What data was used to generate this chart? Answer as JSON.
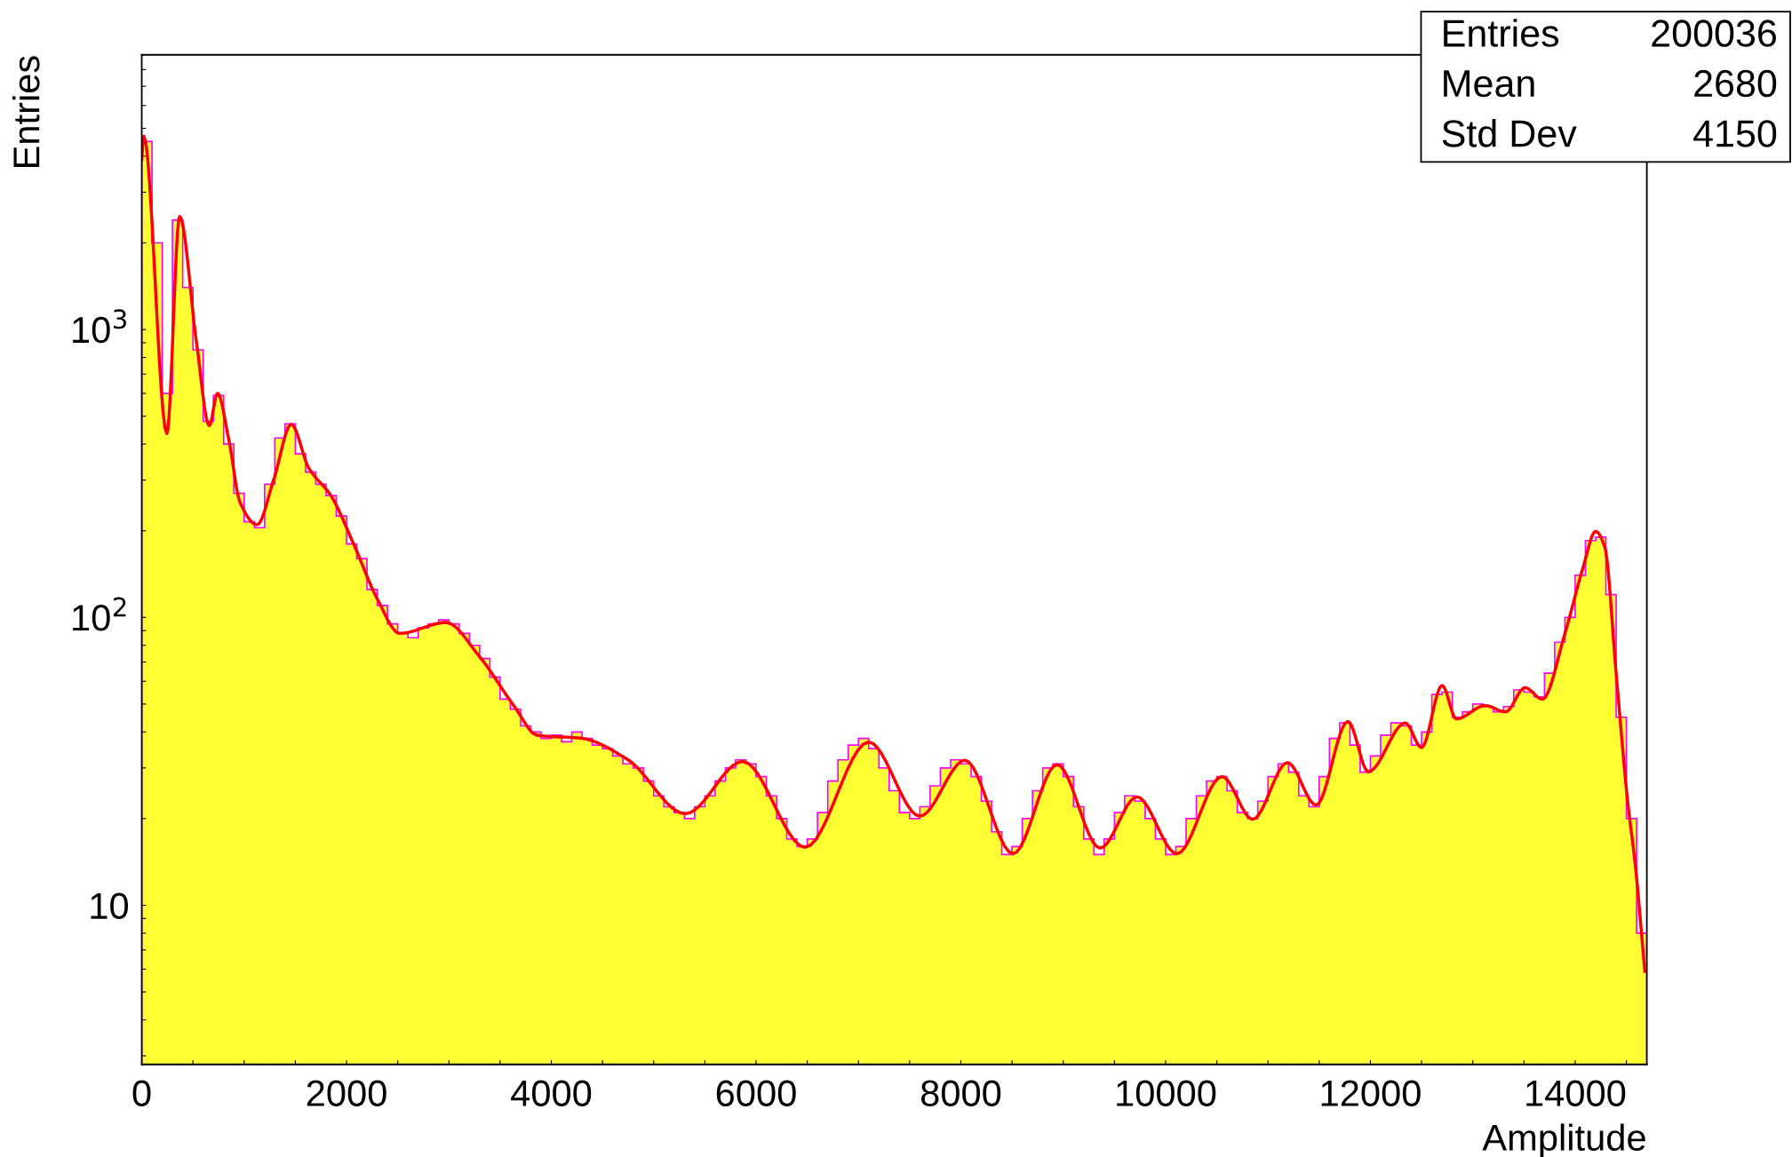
{
  "chart_data": {
    "type": "histogram",
    "xlabel": "Amplitude",
    "ylabel": "Entries",
    "annotations": [
      "Entries",
      "200036",
      "Mean",
      "2680",
      "Std Dev",
      "4150"
    ],
    "log": "y",
    "xlim": [
      0,
      14700
    ],
    "ylim": [
      2.8,
      9000
    ],
    "xticks": [
      0,
      {
        "value": 500,
        "label": null
      },
      {
        "value": 1000,
        "label": null
      },
      {
        "value": 1500,
        "label": null
      },
      2000,
      {
        "value": 2500,
        "label": null
      },
      {
        "value": 3000,
        "label": null
      },
      {
        "value": 3500,
        "label": null
      },
      4000,
      {
        "value": 4500,
        "label": null
      },
      {
        "value": 5000,
        "label": null
      },
      {
        "value": 5500,
        "label": null
      },
      6000,
      {
        "value": 6500,
        "label": null
      },
      {
        "value": 7000,
        "label": null
      },
      {
        "value": 7500,
        "label": null
      },
      8000,
      {
        "value": 8500,
        "label": null
      },
      {
        "value": 9000,
        "label": null
      },
      {
        "value": 9500,
        "label": null
      },
      10000,
      {
        "value": 10500,
        "label": null
      },
      {
        "value": 11000,
        "label": null
      },
      {
        "value": 11500,
        "label": null
      },
      12000,
      {
        "value": 12500,
        "label": null
      },
      {
        "value": 13000,
        "label": null
      },
      {
        "value": 13500,
        "label": null
      },
      14000,
      {
        "value": 14500,
        "label": null
      }
    ],
    "yticks": [
      {
        "value": 3,
        "label": null
      },
      {
        "value": 4,
        "label": null
      },
      {
        "value": 5,
        "label": null
      },
      {
        "value": 6,
        "label": null
      },
      {
        "value": 7,
        "label": null
      },
      {
        "value": 8,
        "label": null
      },
      {
        "value": 9,
        "label": null
      },
      10,
      {
        "value": 20,
        "label": null
      },
      {
        "value": 30,
        "label": null
      },
      {
        "value": 40,
        "label": null
      },
      {
        "value": 50,
        "label": null
      },
      {
        "value": 60,
        "label": null
      },
      {
        "value": 70,
        "label": null
      },
      {
        "value": 80,
        "label": null
      },
      {
        "value": 90,
        "label": null
      },
      {
        "value": 100,
        "label": "10$^{2}$"
      },
      {
        "value": 200,
        "label": null
      },
      {
        "value": 300,
        "label": null
      },
      {
        "value": 400,
        "label": null
      },
      {
        "value": 500,
        "label": null
      },
      {
        "value": 600,
        "label": null
      },
      {
        "value": 700,
        "label": null
      },
      {
        "value": 800,
        "label": null
      },
      {
        "value": 900,
        "label": null
      },
      {
        "value": 1000,
        "label": "10$^{3}$"
      },
      {
        "value": 2000,
        "label": null
      },
      {
        "value": 3000,
        "label": null
      },
      {
        "value": 4000,
        "label": null
      },
      {
        "value": 5000,
        "label": null
      },
      {
        "value": 6000,
        "label": null
      },
      {
        "value": 7000,
        "label": null
      },
      {
        "value": 8000,
        "label": null
      },
      {
        "value": 9000,
        "label": null
      }
    ],
    "grid": false,
    "bins": [
      0,
      100,
      200,
      300,
      400,
      500,
      600,
      700,
      800,
      900,
      1000,
      1100,
      1200,
      1300,
      1400,
      1500,
      1600,
      1700,
      1800,
      1900,
      2000,
      2100,
      2200,
      2300,
      2400,
      2500,
      2600,
      2700,
      2800,
      2900,
      3000,
      3100,
      3200,
      3300,
      3400,
      3500,
      3600,
      3700,
      3800,
      3900,
      4000,
      4100,
      4200,
      4300,
      4400,
      4500,
      4600,
      4700,
      4800,
      4900,
      5000,
      5100,
      5200,
      5300,
      5400,
      5500,
      5600,
      5700,
      5800,
      5900,
      6000,
      6100,
      6200,
      6300,
      6400,
      6500,
      6600,
      6700,
      6800,
      6900,
      7000,
      7100,
      7200,
      7300,
      7400,
      7500,
      7600,
      7700,
      7800,
      7900,
      8000,
      8100,
      8200,
      8300,
      8400,
      8500,
      8600,
      8700,
      8800,
      8900,
      9000,
      9100,
      9200,
      9300,
      9400,
      9500,
      9600,
      9700,
      9800,
      9900,
      10000,
      10100,
      10200,
      10300,
      10400,
      10500,
      10600,
      10700,
      10800,
      10900,
      11000,
      11100,
      11200,
      11300,
      11400,
      11500,
      11600,
      11700,
      11800,
      11900,
      12000,
      12100,
      12200,
      12300,
      12400,
      12500,
      12600,
      12700,
      12800,
      12900,
      13000,
      13100,
      13200,
      13300,
      13400,
      13500,
      13600,
      13700,
      13800,
      13900,
      14000,
      14100,
      14200,
      14300,
      14400,
      14500,
      14600,
      14700
    ],
    "series": [
      {
        "type": "histogram",
        "color": "#ffff33",
        "values": [
          4500,
          2000,
          600,
          2400,
          1400,
          850,
          480,
          590,
          400,
          270,
          215,
          205,
          290,
          420,
          470,
          370,
          320,
          290,
          265,
          225,
          180,
          160,
          125,
          110,
          95,
          88,
          85,
          92,
          95,
          98,
          95,
          88,
          80,
          72,
          62,
          52,
          48,
          42,
          40,
          38,
          39,
          37,
          40,
          38,
          36,
          35,
          33,
          31,
          30,
          27,
          24,
          22,
          21,
          20,
          22,
          24,
          27,
          30,
          32,
          31,
          28,
          24,
          20,
          17,
          16,
          17,
          21,
          27,
          32,
          36,
          38,
          35,
          30,
          25,
          21,
          20,
          22,
          26,
          30,
          32,
          31,
          28,
          23,
          18,
          15,
          16,
          20,
          25,
          30,
          31,
          28,
          22,
          17,
          15,
          17,
          21,
          24,
          23,
          20,
          17,
          15,
          16,
          20,
          24,
          27,
          28,
          25,
          21,
          20,
          23,
          28,
          31,
          29,
          24,
          22,
          28,
          38,
          43,
          36,
          29,
          33,
          39,
          43,
          42,
          36,
          40,
          54,
          55,
          45,
          47,
          50,
          49,
          47,
          49,
          56,
          55,
          53,
          64,
          82,
          100,
          140,
          185,
          190,
          120,
          45,
          20,
          8
        ]
      },
      {
        "type": "line",
        "color": "#ff0000",
        "x": [
          0,
          20,
          245,
          370,
          535,
          660,
          740,
          850,
          960,
          1127,
          1290,
          1460,
          1630,
          1850,
          2075,
          2300,
          2520,
          2970,
          3300,
          3640,
          3860,
          4300,
          4750,
          5310,
          5870,
          6480,
          7100,
          7600,
          8040,
          8510,
          8940,
          9360,
          9720,
          10110,
          10550,
          10850,
          11190,
          11470,
          11780,
          11980,
          12340,
          12500,
          12700,
          12840,
          13120,
          13320,
          13510,
          13680,
          13900,
          14070,
          14200,
          14290,
          14400,
          14510,
          14590,
          14680
        ],
        "values": [
          3900,
          4700,
          435,
          2470,
          900,
          464,
          600,
          415,
          251,
          210,
          302,
          468,
          331,
          264,
          178,
          116,
          88,
          96,
          73,
          49,
          39,
          38,
          32,
          20.8,
          31.6,
          15.9,
          36.9,
          20.4,
          31.9,
          15.1,
          30.8,
          15.8,
          23.8,
          15.1,
          28,
          19.9,
          31.3,
          22.3,
          43.5,
          29.1,
          43,
          35.3,
          58,
          44.4,
          49.4,
          47,
          57,
          52,
          88,
          146,
          199,
          175,
          64,
          23.4,
          13.5,
          5.9
        ]
      }
    ]
  }
}
